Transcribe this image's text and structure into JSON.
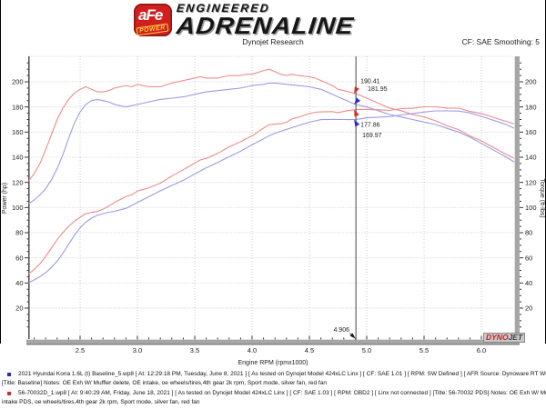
{
  "header": {
    "logo_afe": "aFe",
    "logo_power": "POWER",
    "brand_top": "ENGINEERED",
    "brand_main": "ADRENALINE",
    "subtitle": "Dynojet Research",
    "smoothing_label": "CF: SAE Smoothing: 5"
  },
  "watermark": {
    "dyno": "DYNO",
    "jet": "JET"
  },
  "chart_data": {
    "type": "line",
    "title": "",
    "xlabel": "Engine RPM (rpmx1000)",
    "ylabel_left": "Power (hp)",
    "ylabel_right": "Torque (ft-lbs)",
    "xlim": [
      2.05,
      6.29
    ],
    "ylim": [
      -6,
      220
    ],
    "x_major_ticks": [
      2.5,
      3.0,
      3.5,
      4.0,
      4.5,
      5.0,
      5.5,
      6.0
    ],
    "x_minor_step": 0.1,
    "y_major_ticks": [
      20,
      40,
      60,
      80,
      100,
      120,
      140,
      160,
      180,
      200
    ],
    "y_minor_step": 5,
    "grid": true,
    "legend_position": "footer-text-rows",
    "colors": {
      "run_red": "#ef8a8a",
      "run_blue": "#9b9be6",
      "arrow_red": "#d92b2b",
      "arrow_blue": "#2b2bd9",
      "grid": "#cbcbcb",
      "cursor": "#666666",
      "axis_bar": "#a6a6a6",
      "axis_bar_edge": "#6f6f6f",
      "tick": "#333333"
    },
    "cursor": {
      "rpm": 4.906,
      "label": "4.906",
      "values": [
        {
          "text": "190.41",
          "value": 190.41,
          "color": "#e87a7a",
          "arrow": "#d92b2b",
          "series": "pds-torque"
        },
        {
          "text": "181.95",
          "value": 181.95,
          "color": "#8585d8",
          "arrow": "#2b2bd9",
          "series": "baseline-torque"
        },
        {
          "text": "177.86",
          "value": 177.86,
          "color": "#e05555",
          "arrow": "#d92b2b",
          "series": "pds-power"
        },
        {
          "text": "169.97",
          "value": 169.97,
          "color": "#4747cc",
          "arrow": "#2b2bd9",
          "series": "baseline-power"
        }
      ]
    },
    "series": [
      {
        "id": "pds-torque",
        "name": "56-70032 PDS Torque (ft-lbs)",
        "color": "#ef8a8a",
        "points": [
          [
            2.05,
            121
          ],
          [
            2.1,
            127
          ],
          [
            2.15,
            135
          ],
          [
            2.2,
            146
          ],
          [
            2.25,
            158
          ],
          [
            2.3,
            170
          ],
          [
            2.35,
            179
          ],
          [
            2.4,
            186
          ],
          [
            2.45,
            191
          ],
          [
            2.5,
            194
          ],
          [
            2.55,
            196
          ],
          [
            2.6,
            194
          ],
          [
            2.65,
            192
          ],
          [
            2.7,
            192
          ],
          [
            2.75,
            193
          ],
          [
            2.8,
            195
          ],
          [
            2.85,
            196
          ],
          [
            2.9,
            197
          ],
          [
            2.95,
            196
          ],
          [
            3.0,
            198
          ],
          [
            3.1,
            196
          ],
          [
            3.2,
            196
          ],
          [
            3.3,
            199
          ],
          [
            3.4,
            201
          ],
          [
            3.5,
            203
          ],
          [
            3.55,
            204
          ],
          [
            3.6,
            203
          ],
          [
            3.7,
            203
          ],
          [
            3.8,
            205
          ],
          [
            3.9,
            205
          ],
          [
            3.95,
            206
          ],
          [
            4.0,
            206
          ],
          [
            4.1,
            209
          ],
          [
            4.15,
            210
          ],
          [
            4.2,
            208
          ],
          [
            4.25,
            206
          ],
          [
            4.3,
            205
          ],
          [
            4.35,
            206
          ],
          [
            4.4,
            205
          ],
          [
            4.5,
            204
          ],
          [
            4.55,
            203
          ],
          [
            4.6,
            201
          ],
          [
            4.7,
            197
          ],
          [
            4.75,
            194
          ],
          [
            4.8,
            193
          ],
          [
            4.85,
            192
          ],
          [
            4.906,
            190.41
          ],
          [
            4.95,
            189
          ],
          [
            5.0,
            187
          ],
          [
            5.1,
            183
          ],
          [
            5.2,
            179
          ],
          [
            5.3,
            177
          ],
          [
            5.4,
            174
          ],
          [
            5.5,
            172
          ],
          [
            5.6,
            169
          ],
          [
            5.7,
            165
          ],
          [
            5.8,
            162
          ],
          [
            5.9,
            157
          ],
          [
            6.0,
            153
          ],
          [
            6.1,
            148
          ],
          [
            6.2,
            143
          ],
          [
            6.29,
            139
          ]
        ]
      },
      {
        "id": "baseline-torque",
        "name": "Baseline Torque (ft-lbs)",
        "color": "#9b9be6",
        "points": [
          [
            2.05,
            103
          ],
          [
            2.1,
            106
          ],
          [
            2.15,
            110
          ],
          [
            2.2,
            115
          ],
          [
            2.25,
            122
          ],
          [
            2.3,
            131
          ],
          [
            2.35,
            142
          ],
          [
            2.4,
            155
          ],
          [
            2.45,
            167
          ],
          [
            2.5,
            176
          ],
          [
            2.55,
            182
          ],
          [
            2.6,
            185
          ],
          [
            2.65,
            186
          ],
          [
            2.7,
            185
          ],
          [
            2.75,
            184
          ],
          [
            2.8,
            182
          ],
          [
            2.9,
            180
          ],
          [
            3.0,
            182
          ],
          [
            3.1,
            184
          ],
          [
            3.2,
            186
          ],
          [
            3.3,
            187
          ],
          [
            3.4,
            188
          ],
          [
            3.5,
            190
          ],
          [
            3.6,
            192
          ],
          [
            3.7,
            193
          ],
          [
            3.8,
            194
          ],
          [
            3.9,
            195
          ],
          [
            4.0,
            197
          ],
          [
            4.1,
            198
          ],
          [
            4.15,
            199
          ],
          [
            4.2,
            199
          ],
          [
            4.3,
            198
          ],
          [
            4.4,
            197
          ],
          [
            4.5,
            196
          ],
          [
            4.6,
            194
          ],
          [
            4.7,
            190
          ],
          [
            4.8,
            186
          ],
          [
            4.85,
            184
          ],
          [
            4.906,
            181.95
          ],
          [
            4.95,
            181
          ],
          [
            5.0,
            180
          ],
          [
            5.1,
            177
          ],
          [
            5.2,
            174
          ],
          [
            5.3,
            172
          ],
          [
            5.4,
            170
          ],
          [
            5.5,
            168
          ],
          [
            5.6,
            166
          ],
          [
            5.7,
            163
          ],
          [
            5.8,
            160
          ],
          [
            5.9,
            156
          ],
          [
            6.0,
            151
          ],
          [
            6.1,
            146
          ],
          [
            6.2,
            141
          ],
          [
            6.29,
            136
          ]
        ]
      },
      {
        "id": "pds-power",
        "name": "56-70032 PDS Power (hp)",
        "color": "#ef8a8a",
        "points": [
          [
            2.05,
            47.2
          ],
          [
            2.1,
            50.8
          ],
          [
            2.15,
            55.3
          ],
          [
            2.2,
            61.2
          ],
          [
            2.25,
            67.7
          ],
          [
            2.3,
            74.4
          ],
          [
            2.35,
            80.1
          ],
          [
            2.4,
            85.0
          ],
          [
            2.45,
            89.1
          ],
          [
            2.5,
            92.3
          ],
          [
            2.55,
            95.2
          ],
          [
            2.6,
            96.1
          ],
          [
            2.65,
            96.9
          ],
          [
            2.7,
            98.7
          ],
          [
            2.75,
            101.1
          ],
          [
            2.8,
            104.0
          ],
          [
            2.85,
            106.4
          ],
          [
            2.9,
            108.8
          ],
          [
            2.95,
            110.1
          ],
          [
            3.0,
            113.1
          ],
          [
            3.1,
            115.7
          ],
          [
            3.2,
            119.4
          ],
          [
            3.3,
            125.0
          ],
          [
            3.4,
            130.1
          ],
          [
            3.5,
            135.3
          ],
          [
            3.55,
            137.9
          ],
          [
            3.6,
            139.1
          ],
          [
            3.7,
            143.0
          ],
          [
            3.8,
            148.3
          ],
          [
            3.9,
            152.3
          ],
          [
            3.95,
            154.9
          ],
          [
            4.0,
            156.9
          ],
          [
            4.1,
            163.2
          ],
          [
            4.15,
            165.9
          ],
          [
            4.2,
            166.3
          ],
          [
            4.25,
            166.7
          ],
          [
            4.3,
            167.8
          ],
          [
            4.35,
            170.6
          ],
          [
            4.4,
            171.7
          ],
          [
            4.5,
            174.8
          ],
          [
            4.55,
            175.8
          ],
          [
            4.6,
            176.1
          ],
          [
            4.7,
            176.3
          ],
          [
            4.75,
            175.5
          ],
          [
            4.8,
            176.4
          ],
          [
            4.85,
            177.3
          ],
          [
            4.906,
            177.86
          ],
          [
            4.95,
            178.1
          ],
          [
            5.0,
            178.0
          ],
          [
            5.1,
            177.7
          ],
          [
            5.2,
            177.2
          ],
          [
            5.3,
            178.7
          ],
          [
            5.4,
            178.9
          ],
          [
            5.5,
            180.1
          ],
          [
            5.6,
            180.1
          ],
          [
            5.7,
            179.1
          ],
          [
            5.8,
            179.0
          ],
          [
            5.9,
            176.4
          ],
          [
            6.0,
            174.8
          ],
          [
            6.1,
            171.9
          ],
          [
            6.2,
            168.9
          ],
          [
            6.29,
            166.5
          ]
        ]
      },
      {
        "id": "baseline-power",
        "name": "Baseline Power (hp)",
        "color": "#9b9be6",
        "points": [
          [
            2.05,
            40.2
          ],
          [
            2.1,
            42.4
          ],
          [
            2.15,
            45.0
          ],
          [
            2.2,
            48.2
          ],
          [
            2.25,
            52.3
          ],
          [
            2.3,
            57.4
          ],
          [
            2.35,
            63.5
          ],
          [
            2.4,
            70.8
          ],
          [
            2.45,
            77.9
          ],
          [
            2.5,
            83.8
          ],
          [
            2.55,
            88.4
          ],
          [
            2.6,
            91.6
          ],
          [
            2.65,
            93.8
          ],
          [
            2.7,
            95.1
          ],
          [
            2.75,
            96.3
          ],
          [
            2.8,
            97.0
          ],
          [
            2.9,
            99.4
          ],
          [
            3.0,
            104.0
          ],
          [
            3.1,
            108.6
          ],
          [
            3.2,
            113.3
          ],
          [
            3.3,
            117.5
          ],
          [
            3.4,
            121.7
          ],
          [
            3.5,
            126.6
          ],
          [
            3.6,
            131.6
          ],
          [
            3.7,
            135.9
          ],
          [
            3.8,
            140.4
          ],
          [
            3.9,
            144.8
          ],
          [
            4.0,
            150.0
          ],
          [
            4.1,
            154.6
          ],
          [
            4.15,
            157.2
          ],
          [
            4.2,
            159.1
          ],
          [
            4.3,
            162.1
          ],
          [
            4.4,
            165.0
          ],
          [
            4.5,
            167.9
          ],
          [
            4.6,
            169.9
          ],
          [
            4.7,
            170.1
          ],
          [
            4.8,
            170.0
          ],
          [
            4.85,
            169.9
          ],
          [
            4.906,
            169.97
          ],
          [
            4.95,
            170.6
          ],
          [
            5.0,
            171.4
          ],
          [
            5.1,
            171.9
          ],
          [
            5.2,
            172.3
          ],
          [
            5.3,
            173.6
          ],
          [
            5.4,
            174.8
          ],
          [
            5.5,
            175.9
          ],
          [
            5.6,
            176.9
          ],
          [
            5.7,
            176.9
          ],
          [
            5.8,
            176.7
          ],
          [
            5.9,
            175.3
          ],
          [
            6.0,
            172.5
          ],
          [
            6.1,
            169.6
          ],
          [
            6.2,
            166.5
          ],
          [
            6.29,
            162.9
          ]
        ]
      }
    ]
  },
  "footer": {
    "runs": [
      {
        "bullet_color": "#2929c8",
        "line1": "2021 Hyundai Kona 1.6L (t) Baseline_5.wp8 [ At: 12:29:18 PM, Tuesday, June 8, 2021 ] [ As tested on Dynojet Model 424xLC Linx ] [ CF: SAE 1.01 ] [ RPM: SW Defined ] [ AFR Source: Dynoware RT WB ] [ Linx not connected ]",
        "line2": "[Title: Baseline]  Notes: OE Exh W/ Muffler delete, OE intake, oe wheels/tires,4th gear 2k rpm, Sport mode, silver fan, red fan"
      },
      {
        "bullet_color": "#d22b2b",
        "line1": "56-70032D_1.wp8 [ At: 9:40:29 AM, Friday, June 18, 2021 ] [ As tested on Dynojet Model 424xLC Linx ] [ CF: SAE 1.03 ] [ RPM: OBD2 ] [ Linx not connected ] [Title: 56-70032 PDS]  Notes: OE Exh W/ Muffler delete,56-70032",
        "line2": "intake PDS, oe wheels/tires,4th gear 2k rpm, Sport mode, silver fan, red fan"
      }
    ]
  }
}
